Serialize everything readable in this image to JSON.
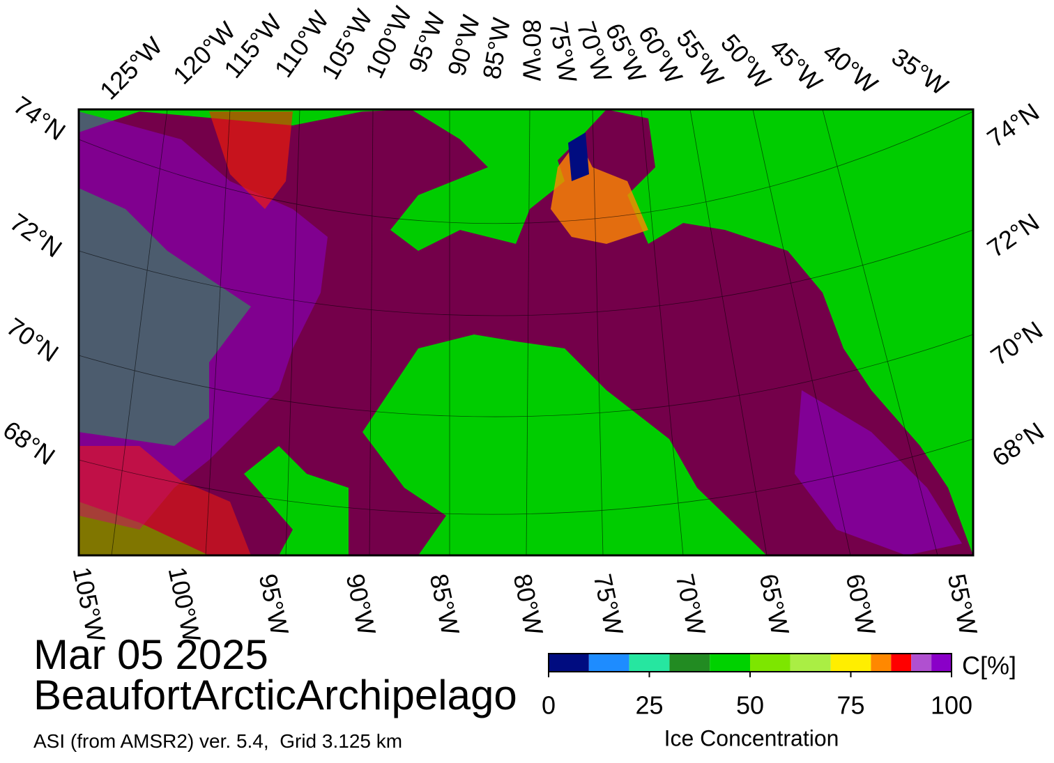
{
  "map": {
    "top_longitude_labels": [
      "125°W",
      "120°W",
      "115°W",
      "110°W",
      "105°W",
      "100°W",
      "95°W",
      "90°W",
      "85°W",
      "80°W",
      "75°W",
      "70°W",
      "65°W",
      "60°W",
      "55°W",
      "50°W",
      "45°W",
      "40°W",
      "35°W"
    ],
    "bottom_longitude_labels": [
      "105°W",
      "100°W",
      "95°W",
      "90°W",
      "85°W",
      "80°W",
      "75°W",
      "70°W",
      "65°W",
      "60°W",
      "55°W"
    ],
    "left_latitude_labels": [
      "74°N",
      "72°N",
      "70°N",
      "68°N"
    ],
    "right_latitude_labels": [
      "74°N",
      "72°N",
      "70°N",
      "68°N"
    ]
  },
  "date": "Mar 05 2025",
  "region": "BeaufortArcticArchipelago",
  "source": "ASI (from AMSR2) ver. 5.4,  Grid 3.125 km",
  "colorbar": {
    "unit": "C[%]",
    "label": "Ice Concentration",
    "lim": [
      0,
      100
    ],
    "bounds": [
      0,
      10,
      20,
      30,
      40,
      50,
      60,
      70,
      80,
      85,
      90,
      95,
      100
    ],
    "colors": [
      "#000c80",
      "#1e8cff",
      "#26e6a0",
      "#228b22",
      "#00d200",
      "#7de600",
      "#aaee44",
      "#ffee00",
      "#ff8800",
      "#ff0000",
      "#b050d0",
      "#8a00c8"
    ],
    "ticks": [
      0,
      25,
      50,
      75,
      100
    ]
  }
}
